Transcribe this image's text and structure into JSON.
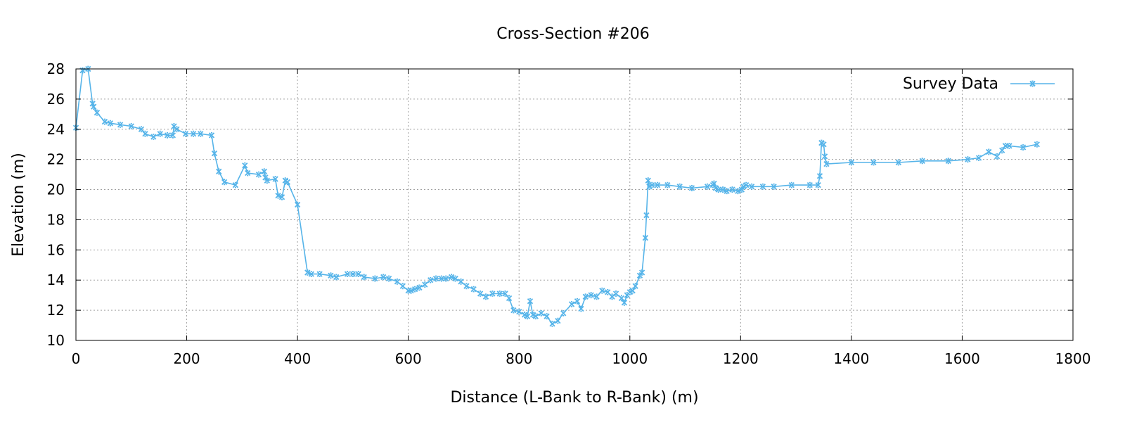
{
  "chart_data": {
    "type": "line",
    "title": "Cross-Section #206",
    "xlabel": "Distance (L-Bank to R-Bank) (m)",
    "ylabel": "Elevation (m)",
    "xlim": [
      0,
      1800
    ],
    "ylim": [
      10,
      28
    ],
    "xticks": [
      0,
      200,
      400,
      600,
      800,
      1000,
      1200,
      1400,
      1600,
      1800
    ],
    "yticks": [
      10,
      12,
      14,
      16,
      18,
      20,
      22,
      24,
      26,
      28
    ],
    "grid": true,
    "legend_position": "top-right",
    "series": [
      {
        "name": "Survey Data",
        "color": "#56b4e9",
        "marker": "x",
        "x": [
          0,
          12,
          22,
          30,
          32,
          38,
          52,
          62,
          80,
          100,
          118,
          125,
          140,
          152,
          165,
          175,
          177,
          182,
          198,
          212,
          225,
          245,
          250,
          258,
          268,
          288,
          305,
          310,
          330,
          340,
          342,
          345,
          360,
          365,
          372,
          378,
          382,
          400,
          418,
          425,
          440,
          460,
          470,
          490,
          500,
          510,
          520,
          540,
          555,
          565,
          580,
          590,
          600,
          605,
          612,
          620,
          630,
          640,
          650,
          660,
          668,
          678,
          685,
          695,
          705,
          718,
          730,
          740,
          752,
          765,
          775,
          782,
          790,
          800,
          810,
          815,
          820,
          825,
          830,
          840,
          850,
          860,
          870,
          880,
          895,
          905,
          912,
          920,
          930,
          940,
          950,
          960,
          968,
          975,
          985,
          990,
          995,
          1000,
          1005,
          1010,
          1018,
          1022,
          1028,
          1030,
          1033,
          1035,
          1040,
          1050,
          1068,
          1090,
          1112,
          1140,
          1150,
          1152,
          1155,
          1160,
          1168,
          1175,
          1185,
          1195,
          1202,
          1205,
          1210,
          1220,
          1240,
          1260,
          1292,
          1325,
          1340,
          1343,
          1346,
          1350,
          1352,
          1355,
          1400,
          1440,
          1485,
          1528,
          1575,
          1610,
          1630,
          1648,
          1663,
          1672,
          1678,
          1685,
          1710,
          1735
        ],
        "y": [
          24.1,
          27.9,
          28.0,
          25.7,
          25.5,
          25.1,
          24.5,
          24.4,
          24.3,
          24.2,
          24.0,
          23.7,
          23.5,
          23.7,
          23.6,
          23.6,
          24.2,
          24.0,
          23.7,
          23.7,
          23.7,
          23.6,
          22.4,
          21.2,
          20.5,
          20.3,
          21.6,
          21.1,
          21.0,
          21.2,
          20.8,
          20.6,
          20.7,
          19.6,
          19.5,
          20.6,
          20.5,
          19.0,
          14.5,
          14.4,
          14.4,
          14.3,
          14.2,
          14.4,
          14.4,
          14.4,
          14.2,
          14.1,
          14.2,
          14.1,
          13.9,
          13.6,
          13.3,
          13.3,
          13.4,
          13.5,
          13.7,
          14.0,
          14.1,
          14.1,
          14.1,
          14.2,
          14.1,
          13.9,
          13.6,
          13.4,
          13.1,
          12.9,
          13.1,
          13.1,
          13.1,
          12.8,
          12.0,
          11.9,
          11.7,
          11.6,
          12.6,
          11.7,
          11.6,
          11.8,
          11.6,
          11.1,
          11.3,
          11.8,
          12.4,
          12.6,
          12.1,
          12.9,
          13.0,
          12.9,
          13.3,
          13.2,
          12.9,
          13.1,
          12.8,
          12.5,
          13.0,
          13.2,
          13.3,
          13.6,
          14.3,
          14.5,
          16.8,
          18.3,
          20.6,
          20.2,
          20.3,
          20.3,
          20.3,
          20.2,
          20.1,
          20.2,
          20.3,
          20.4,
          20.1,
          20.0,
          20.0,
          19.9,
          20.0,
          19.9,
          20.0,
          20.2,
          20.3,
          20.2,
          20.2,
          20.2,
          20.3,
          20.3,
          20.3,
          20.9,
          23.1,
          23.0,
          22.2,
          21.7,
          21.8,
          21.8,
          21.8,
          21.9,
          21.9,
          22.0,
          22.1,
          22.5,
          22.2,
          22.6,
          22.9,
          22.9,
          22.8,
          23.0
        ]
      }
    ]
  }
}
